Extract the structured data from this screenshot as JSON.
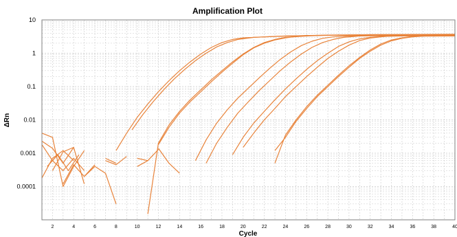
{
  "chart_data": {
    "type": "line",
    "title": "Amplification Plot",
    "xlabel": "Cycle",
    "ylabel": "ΔRn",
    "xlim": [
      1,
      40
    ],
    "ylim": [
      2e-05,
      10
    ],
    "yscale": "log",
    "grid": true,
    "line_color": "#E8833A",
    "grid_color": "#C8C8C8",
    "x_ticks": [
      2,
      4,
      6,
      8,
      10,
      12,
      14,
      16,
      18,
      20,
      22,
      24,
      26,
      28,
      30,
      32,
      34,
      36,
      38,
      40
    ],
    "y_ticks": [
      {
        "value": 10,
        "label": "10"
      },
      {
        "value": 1,
        "label": "1"
      },
      {
        "value": 0.1,
        "label": "0.1"
      },
      {
        "value": 0.01,
        "label": "0.01"
      },
      {
        "value": 0.001,
        "label": "0.001"
      },
      {
        "value": 0.0001,
        "label": "0.0001"
      }
    ],
    "series": [
      {
        "x": [
          9,
          10,
          11,
          12,
          13,
          14,
          15,
          16,
          17,
          18,
          19,
          20,
          22,
          24,
          27,
          30,
          34,
          40
        ],
        "y": [
          0.004,
          0.012,
          0.03,
          0.07,
          0.15,
          0.3,
          0.55,
          0.95,
          1.5,
          2.1,
          2.6,
          2.9,
          3.1,
          3.3,
          3.4,
          3.5,
          3.5,
          3.5
        ]
      },
      {
        "x": [
          9.5,
          10.5,
          11.5,
          12.5,
          13.5,
          14.5,
          15.5,
          16.5,
          17.5,
          18.5,
          19.5,
          21,
          23,
          26,
          30,
          40
        ],
        "y": [
          0.005,
          0.014,
          0.035,
          0.08,
          0.17,
          0.33,
          0.6,
          1.0,
          1.55,
          2.1,
          2.6,
          3.0,
          3.2,
          3.4,
          3.5,
          3.6
        ]
      },
      {
        "x": [
          12,
          13,
          14,
          15,
          16,
          17,
          18,
          19,
          20,
          21,
          22,
          23,
          24,
          26,
          28,
          32,
          40
        ],
        "y": [
          0.002,
          0.007,
          0.018,
          0.04,
          0.08,
          0.16,
          0.3,
          0.55,
          0.95,
          1.5,
          2.1,
          2.6,
          3.0,
          3.3,
          3.5,
          3.6,
          3.7
        ]
      },
      {
        "x": [
          12,
          13,
          14,
          15,
          16,
          17,
          18,
          19,
          20,
          21,
          22,
          23,
          24,
          25,
          26,
          28,
          32,
          40
        ],
        "y": [
          0.0018,
          0.006,
          0.016,
          0.035,
          0.07,
          0.14,
          0.27,
          0.5,
          0.9,
          1.45,
          2.0,
          2.5,
          2.9,
          3.2,
          3.4,
          3.5,
          3.6,
          3.6
        ]
      },
      {
        "x": [
          15.5,
          16.5,
          17.5,
          18.5,
          19.5,
          20.5,
          21.5,
          22.5,
          23.5,
          24.5,
          25.5,
          26.5,
          27.5,
          28.5,
          30,
          33,
          40
        ],
        "y": [
          0.0006,
          0.0025,
          0.008,
          0.02,
          0.045,
          0.09,
          0.18,
          0.35,
          0.65,
          1.1,
          1.7,
          2.3,
          2.8,
          3.1,
          3.3,
          3.4,
          3.5
        ]
      },
      {
        "x": [
          16.5,
          17.5,
          18.5,
          19.5,
          20.5,
          21.5,
          22.5,
          23.5,
          24.5,
          25.5,
          26.5,
          27.5,
          28.5,
          29.5,
          31,
          34,
          40
        ],
        "y": [
          0.0005,
          0.002,
          0.006,
          0.016,
          0.035,
          0.075,
          0.15,
          0.3,
          0.55,
          0.95,
          1.5,
          2.1,
          2.6,
          3.0,
          3.3,
          3.4,
          3.5
        ]
      },
      {
        "x": [
          19,
          20,
          21,
          22,
          23,
          24,
          25,
          26,
          27,
          28,
          29,
          30,
          31,
          32,
          33,
          35,
          40
        ],
        "y": [
          0.0009,
          0.003,
          0.008,
          0.018,
          0.04,
          0.085,
          0.17,
          0.33,
          0.6,
          1.0,
          1.6,
          2.2,
          2.7,
          3.0,
          3.2,
          3.3,
          3.4
        ]
      },
      {
        "x": [
          20,
          21,
          22,
          23,
          24,
          25,
          26,
          27,
          28,
          29,
          30,
          31,
          32,
          33,
          34,
          36,
          40
        ],
        "y": [
          0.0015,
          0.004,
          0.01,
          0.022,
          0.05,
          0.1,
          0.2,
          0.38,
          0.7,
          1.15,
          1.75,
          2.4,
          2.85,
          3.1,
          3.3,
          3.4,
          3.4
        ]
      },
      {
        "x": [
          23,
          24,
          25,
          26,
          27,
          28,
          29,
          30,
          31,
          32,
          33,
          34,
          35,
          36,
          37,
          40
        ],
        "y": [
          0.0005,
          0.0035,
          0.01,
          0.025,
          0.055,
          0.11,
          0.22,
          0.42,
          0.75,
          1.25,
          1.9,
          2.5,
          2.9,
          3.2,
          3.3,
          3.4
        ]
      },
      {
        "x": [
          23,
          24,
          25,
          26,
          27,
          28,
          29,
          30,
          31,
          32,
          33,
          34,
          35,
          36,
          37,
          40
        ],
        "y": [
          0.0012,
          0.003,
          0.009,
          0.022,
          0.05,
          0.1,
          0.2,
          0.38,
          0.7,
          1.15,
          1.75,
          2.35,
          2.8,
          3.1,
          3.25,
          3.3
        ]
      },
      {
        "x": [
          1,
          2,
          3,
          4,
          5
        ],
        "y": [
          0.004,
          0.003,
          0.0001,
          0.0004,
          0.0012
        ]
      },
      {
        "x": [
          1,
          2,
          3,
          4
        ],
        "y": [
          0.0023,
          0.0014,
          0.0005,
          0.0015
        ]
      },
      {
        "x": [
          1,
          2,
          3,
          4,
          5
        ],
        "y": [
          0.0018,
          0.0006,
          0.0003,
          0.0007,
          0.0003
        ]
      },
      {
        "x": [
          1,
          2,
          3,
          4
        ],
        "y": [
          0.00018,
          0.0007,
          0.0012,
          0.0006
        ]
      },
      {
        "x": [
          1.5,
          2.5,
          3.5,
          4.5
        ],
        "y": [
          0.0004,
          0.0009,
          0.0003,
          0.0009
        ]
      },
      {
        "x": [
          2,
          3,
          4,
          5
        ],
        "y": [
          0.0003,
          0.0011,
          0.0015,
          0.00012
        ]
      },
      {
        "x": [
          3,
          4,
          5,
          6
        ],
        "y": [
          0.00012,
          0.00045,
          0.0002,
          0.00045
        ]
      },
      {
        "x": [
          5,
          6,
          7,
          8
        ],
        "y": [
          0.0002,
          0.0004,
          0.00025,
          3e-05
        ]
      },
      {
        "x": [
          7,
          8,
          9
        ],
        "y": [
          0.0006,
          0.00045,
          0.0008
        ]
      },
      {
        "x": [
          7,
          8
        ],
        "y": [
          0.0007,
          0.0005
        ]
      },
      {
        "x": [
          8,
          9
        ],
        "y": [
          0.0012,
          0.004
        ]
      },
      {
        "x": [
          10,
          11,
          12
        ],
        "y": [
          0.0004,
          0.0006,
          0.0013
        ]
      },
      {
        "x": [
          10,
          11
        ],
        "y": [
          0.0007,
          0.0006
        ]
      },
      {
        "x": [
          11,
          12
        ],
        "y": [
          1.5e-05,
          0.002
        ]
      },
      {
        "x": [
          12,
          13,
          14
        ],
        "y": [
          0.0014,
          0.0005,
          0.00025
        ]
      }
    ]
  }
}
